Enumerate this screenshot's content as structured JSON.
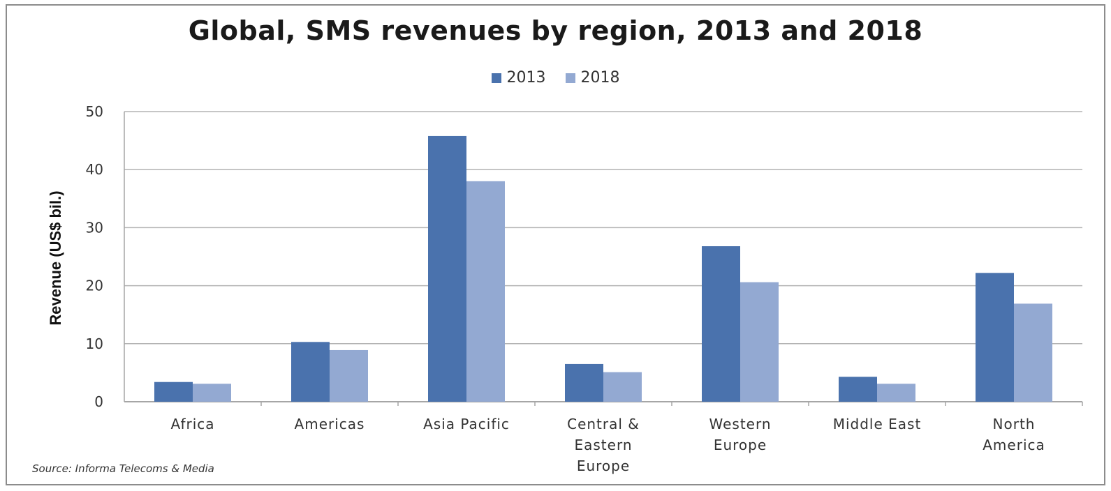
{
  "chart_data": {
    "type": "bar",
    "title": "Global,  SMS revenues by region, 2013 and 2018",
    "ylabel": "Revenue (US$ bil.)",
    "xlabel": "",
    "ylim": [
      0,
      50
    ],
    "yticks": [
      0,
      10,
      20,
      30,
      40,
      50
    ],
    "grid": true,
    "legend_position": "top-center",
    "categories": [
      [
        "Africa"
      ],
      [
        "Americas"
      ],
      [
        "Asia Pacific"
      ],
      [
        "Central &",
        "Eastern",
        "Europe"
      ],
      [
        "Western",
        "Europe"
      ],
      [
        "Middle East"
      ],
      [
        "North",
        "America"
      ]
    ],
    "series": [
      {
        "name": "2013",
        "color": "#4a72ad",
        "values": [
          3.4,
          10.3,
          45.8,
          6.5,
          26.8,
          4.3,
          22.2
        ]
      },
      {
        "name": "2018",
        "color": "#93a9d2",
        "values": [
          3.1,
          8.9,
          38.0,
          5.1,
          20.6,
          3.1,
          16.9
        ]
      }
    ],
    "source": "Source: Informa Telecoms & Media"
  }
}
